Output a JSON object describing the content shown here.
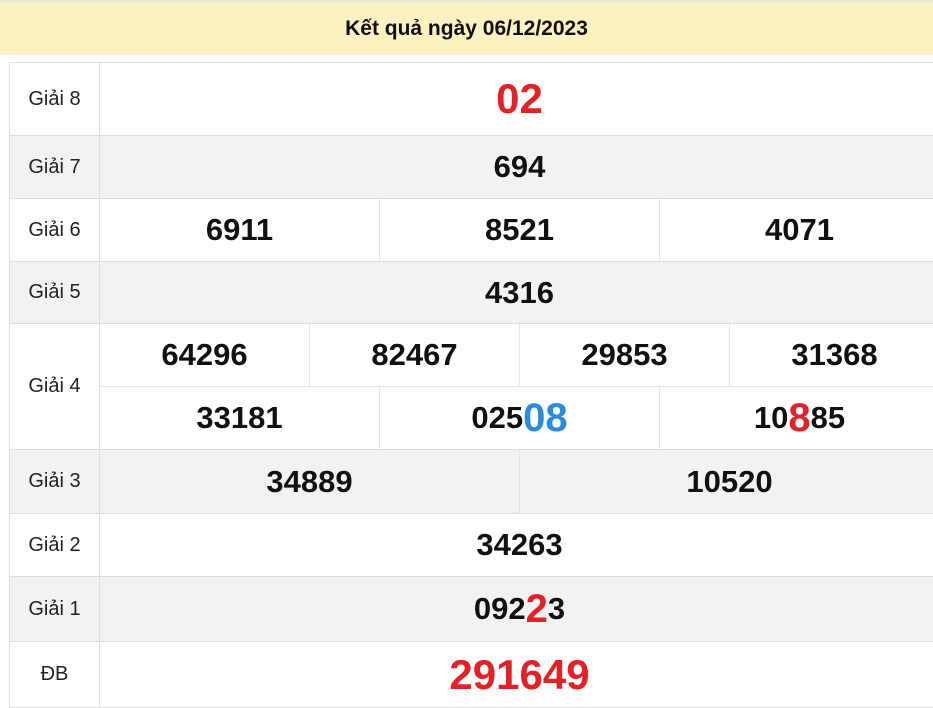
{
  "title": "Kết quả ngày 06/12/2023",
  "colors": {
    "header_bg": "#fdf1c2",
    "highlight_red": "#e32127",
    "highlight_blue": "#2b8be0",
    "row_alt": "#f2f2f2"
  },
  "rows": [
    {
      "label": "Giải 8",
      "numbers": [
        [
          {
            "pre": "02"
          }
        ]
      ]
    },
    {
      "label": "Giải 7",
      "numbers": [
        [
          {
            "pre": "694"
          }
        ]
      ]
    },
    {
      "label": "Giải 6",
      "numbers": [
        [
          {
            "pre": "6911"
          },
          {
            "pre": "8521"
          },
          {
            "pre": "4071"
          }
        ]
      ]
    },
    {
      "label": "Giải 5",
      "numbers": [
        [
          {
            "pre": "4316"
          }
        ]
      ]
    },
    {
      "label": "Giải 4",
      "numbers": [
        [
          {
            "pre": "64296"
          },
          {
            "pre": "82467"
          },
          {
            "pre": "29853"
          },
          {
            "pre": "31368"
          }
        ],
        [
          {
            "pre": "33181"
          },
          {
            "pre": "025",
            "hl": "08",
            "color": "blue"
          },
          {
            "pre": "10",
            "hl": "8",
            "post": "85",
            "color": "red"
          }
        ]
      ]
    },
    {
      "label": "Giải 3",
      "numbers": [
        [
          {
            "pre": "34889"
          },
          {
            "pre": "10520"
          }
        ]
      ]
    },
    {
      "label": "Giải 2",
      "numbers": [
        [
          {
            "pre": "34263"
          }
        ]
      ]
    },
    {
      "label": "Giải 1",
      "numbers": [
        [
          {
            "pre": "092",
            "hl": "2",
            "post": "3",
            "color": "red"
          }
        ]
      ]
    },
    {
      "label": "ĐB",
      "numbers": [
        [
          {
            "pre": "291649"
          }
        ]
      ]
    }
  ]
}
